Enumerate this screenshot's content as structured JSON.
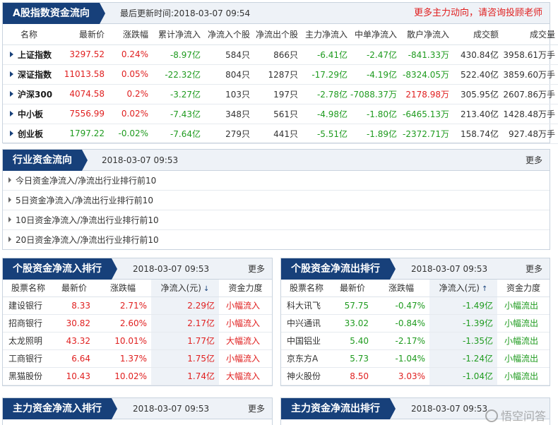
{
  "index_panel": {
    "title": "A股指数资金流向",
    "updated": "最后更新时间:2018-03-07 09:54",
    "promo": "更多主力动向，请咨询投顾老师",
    "columns": [
      "名称",
      "最新价",
      "涨跌幅",
      "累计净流入",
      "净流入个股",
      "净流出个股",
      "主力净流入",
      "中单净流入",
      "散户净流入",
      "成交额",
      "成交量"
    ],
    "rows": [
      {
        "name": "上证指数",
        "price": "3297.52",
        "chg": "0.24%",
        "net": "-8.97亿",
        "in_cnt": "584只",
        "out_cnt": "866只",
        "main": "-6.41亿",
        "mid": "-2.47亿",
        "retail": "-841.33万",
        "amount": "430.84亿",
        "volume": "3958.61万手",
        "price_color": "red",
        "chg_color": "red",
        "net_color": "green",
        "main_color": "green",
        "mid_color": "green",
        "retail_color": "green"
      },
      {
        "name": "深证指数",
        "price": "11013.58",
        "chg": "0.05%",
        "net": "-22.32亿",
        "in_cnt": "804只",
        "out_cnt": "1287只",
        "main": "-17.29亿",
        "mid": "-4.19亿",
        "retail": "-8324.05万",
        "amount": "522.40亿",
        "volume": "3859.60万手",
        "price_color": "red",
        "chg_color": "red",
        "net_color": "green",
        "main_color": "green",
        "mid_color": "green",
        "retail_color": "green"
      },
      {
        "name": "沪深300",
        "price": "4074.58",
        "chg": "0.2%",
        "net": "-3.27亿",
        "in_cnt": "103只",
        "out_cnt": "197只",
        "main": "-2.78亿",
        "mid": "-7088.37万",
        "retail": "2178.98万",
        "amount": "305.95亿",
        "volume": "2607.86万手",
        "price_color": "red",
        "chg_color": "red",
        "net_color": "green",
        "main_color": "green",
        "mid_color": "green",
        "retail_color": "red"
      },
      {
        "name": "中小板",
        "price": "7556.99",
        "chg": "0.02%",
        "net": "-7.43亿",
        "in_cnt": "348只",
        "out_cnt": "561只",
        "main": "-4.98亿",
        "mid": "-1.80亿",
        "retail": "-6465.13万",
        "amount": "213.40亿",
        "volume": "1428.48万手",
        "price_color": "red",
        "chg_color": "red",
        "net_color": "green",
        "main_color": "green",
        "mid_color": "green",
        "retail_color": "green"
      },
      {
        "name": "创业板",
        "price": "1797.22",
        "chg": "-0.02%",
        "net": "-7.64亿",
        "in_cnt": "279只",
        "out_cnt": "441只",
        "main": "-5.51亿",
        "mid": "-1.89亿",
        "retail": "-2372.71万",
        "amount": "158.74亿",
        "volume": "927.48万手",
        "price_color": "green",
        "chg_color": "green",
        "net_color": "green",
        "main_color": "green",
        "mid_color": "green",
        "retail_color": "green"
      }
    ]
  },
  "industry_panel": {
    "title": "行业资金流向",
    "time": "2018-03-07 09:53",
    "more": "更多",
    "links": [
      "今日资金净流入/净流出行业排行前10",
      "5日资金净流入/净流出行业排行前10",
      "10日资金净流入/净流出行业排行前10",
      "20日资金净流入/净流出行业排行前10"
    ]
  },
  "inflow_panel": {
    "title": "个股资金净流入排行",
    "time": "2018-03-07 09:53",
    "more": "更多",
    "columns": [
      "股票名称",
      "最新价",
      "涨跌幅",
      "净流入(元)",
      "资金力度"
    ],
    "rows": [
      {
        "name": "建设银行",
        "price": "8.33",
        "chg": "2.71%",
        "net": "2.29亿",
        "level": "小幅流入"
      },
      {
        "name": "招商银行",
        "price": "30.82",
        "chg": "2.60%",
        "net": "2.17亿",
        "level": "小幅流入"
      },
      {
        "name": "太龙照明",
        "price": "43.32",
        "chg": "10.01%",
        "net": "1.77亿",
        "level": "大幅流入"
      },
      {
        "name": "工商银行",
        "price": "6.64",
        "chg": "1.37%",
        "net": "1.75亿",
        "level": "小幅流入"
      },
      {
        "name": "黑猫股份",
        "price": "10.43",
        "chg": "10.02%",
        "net": "1.74亿",
        "level": "大幅流入"
      }
    ]
  },
  "outflow_panel": {
    "title": "个股资金净流出排行",
    "time": "2018-03-07 09:53",
    "more": "更多",
    "columns": [
      "股票名称",
      "最新价",
      "涨跌幅",
      "净流入(元)",
      "资金力度"
    ],
    "rows": [
      {
        "name": "科大讯飞",
        "price": "57.75",
        "chg": "-0.47%",
        "net": "-1.49亿",
        "level": "小幅流出",
        "price_color": "green",
        "chg_color": "green"
      },
      {
        "name": "中兴通讯",
        "price": "33.02",
        "chg": "-0.84%",
        "net": "-1.39亿",
        "level": "小幅流出",
        "price_color": "green",
        "chg_color": "green"
      },
      {
        "name": "中国铝业",
        "price": "5.40",
        "chg": "-2.17%",
        "net": "-1.35亿",
        "level": "小幅流出",
        "price_color": "green",
        "chg_color": "green"
      },
      {
        "name": "京东方A",
        "price": "5.73",
        "chg": "-1.04%",
        "net": "-1.24亿",
        "level": "小幅流出",
        "price_color": "green",
        "chg_color": "green"
      },
      {
        "name": "神火股份",
        "price": "8.50",
        "chg": "3.03%",
        "net": "-1.04亿",
        "level": "小幅流出",
        "price_color": "red",
        "chg_color": "red"
      }
    ]
  },
  "main_in_panel": {
    "title": "主力资金净流入排行",
    "time": "2018-03-07 09:53",
    "more": "更多"
  },
  "main_out_panel": {
    "title": "主力资金净流出排行",
    "time": "2018-03-07 09:53"
  },
  "watermark": "悟空问答",
  "colors": {
    "accent": "#17407a",
    "up": "#e02020",
    "down": "#1f9b1f",
    "header_bg": "#eef2f7"
  },
  "icons": {
    "row_marker": "triangle-right-icon",
    "sort_down": "arrow-down-icon",
    "sort_up": "arrow-up-icon"
  }
}
